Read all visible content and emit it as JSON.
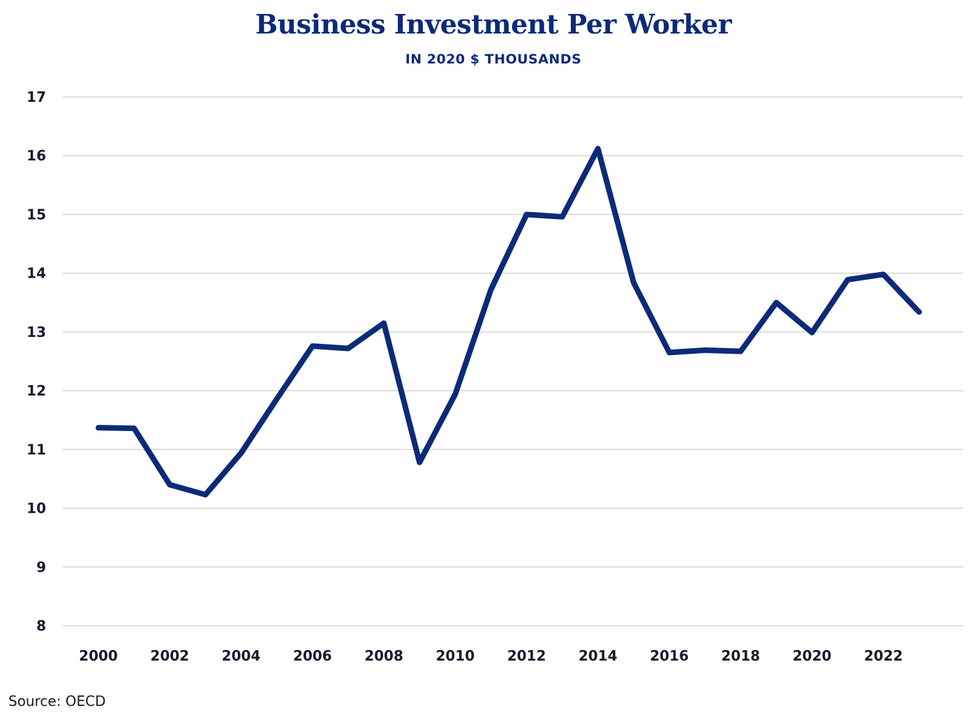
{
  "chart_data": {
    "type": "line",
    "title": "Business Investment Per Worker",
    "subtitle": "IN 2020 $ THOUSANDS",
    "xlabel": "",
    "ylabel": "",
    "ylim": [
      8,
      17
    ],
    "yticks": [
      8,
      9,
      10,
      11,
      12,
      13,
      14,
      15,
      16,
      17
    ],
    "xlim": [
      2000,
      2023
    ],
    "xticks": [
      2000,
      2002,
      2004,
      2006,
      2008,
      2010,
      2012,
      2014,
      2016,
      2018,
      2020,
      2022
    ],
    "grid": true,
    "legend": "none",
    "series": [
      {
        "name": "Business Investment Per Worker",
        "color": "#0b2a78",
        "x": [
          2000,
          2001,
          2002,
          2003,
          2004,
          2005,
          2006,
          2007,
          2008,
          2009,
          2010,
          2011,
          2012,
          2013,
          2014,
          2015,
          2016,
          2017,
          2018,
          2019,
          2020,
          2021,
          2022,
          2023
        ],
        "values": [
          11.37,
          11.36,
          10.4,
          10.23,
          10.94,
          11.86,
          12.76,
          12.72,
          13.15,
          10.78,
          11.94,
          13.72,
          15.0,
          14.96,
          16.12,
          13.84,
          12.65,
          12.69,
          12.67,
          13.5,
          12.99,
          13.89,
          13.98,
          13.34
        ]
      }
    ],
    "source": "Source: OECD"
  }
}
